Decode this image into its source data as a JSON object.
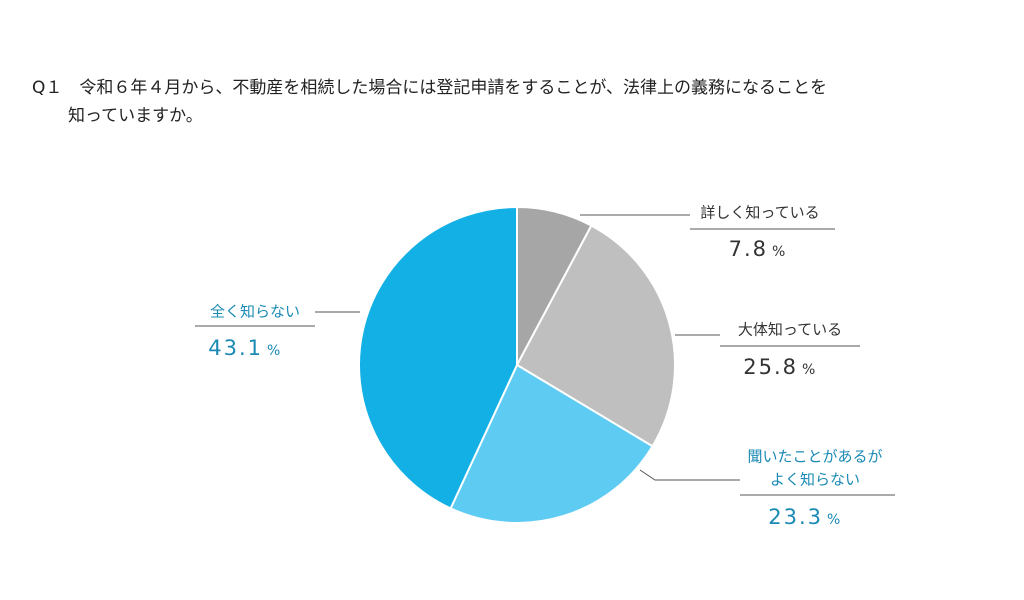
{
  "chart_data": {
    "type": "pie",
    "title": [
      "Q１　令和６年４月から、不動産を相続した場合には登記申請をすることが、法律上の義務になることを",
      "知っていますか。"
    ],
    "categories": [
      [
        "詳しく知っている"
      ],
      [
        "大体知っている"
      ],
      [
        "聞いたことがあるが",
        "よく知らない"
      ],
      [
        "全く知らない"
      ]
    ],
    "values": [
      7.8,
      25.8,
      23.3,
      43.1
    ],
    "unit": "%",
    "colors": [
      "#a6a6a6",
      "#bfbfbf",
      "#5ecbf2",
      "#13b0e6"
    ]
  }
}
